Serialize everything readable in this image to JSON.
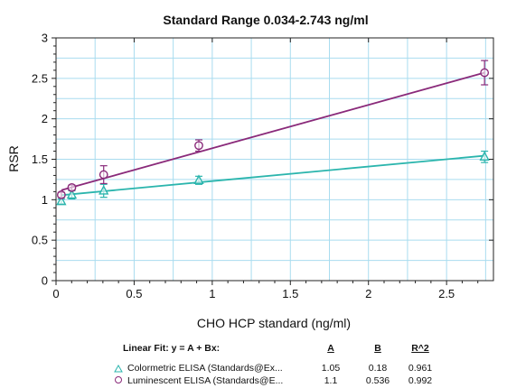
{
  "chart_data": {
    "type": "scatter",
    "title": "Standard Range 0.034-2.743 ng/ml",
    "xlabel": "CHO HCP standard (ng/ml)",
    "ylabel": "RSR",
    "xlim": [
      0,
      2.8
    ],
    "ylim": [
      0,
      3
    ],
    "xticks": [
      0,
      0.5,
      1,
      1.5,
      2,
      2.5
    ],
    "yticks": [
      0,
      0.5,
      1,
      1.5,
      2,
      2.5,
      3
    ],
    "grid": true,
    "series": [
      {
        "name": "Colormetric ELISA (Standards@Ex...",
        "marker": "triangle",
        "color": "#2bb5ad",
        "x": [
          0.034,
          0.101,
          0.305,
          0.914,
          2.743
        ],
        "y": [
          0.98,
          1.06,
          1.11,
          1.24,
          1.53
        ],
        "err": [
          0.03,
          0.05,
          0.08,
          0.05,
          0.07
        ],
        "fit": {
          "A": 1.05,
          "B": 0.18,
          "R2": 0.961
        }
      },
      {
        "name": "Luminescent ELISA (Standards@E...",
        "marker": "circle",
        "color": "#8a2a7a",
        "x": [
          0.034,
          0.101,
          0.305,
          0.914,
          2.743
        ],
        "y": [
          1.06,
          1.15,
          1.31,
          1.67,
          2.57
        ],
        "err": [
          0.03,
          0.03,
          0.11,
          0.07,
          0.15
        ],
        "fit": {
          "A": 1.1,
          "B": 0.536,
          "R2": 0.992
        }
      }
    ]
  },
  "fit_table": {
    "heading": "Linear Fit: y = A + Bx:",
    "col_a": "A",
    "col_b": "B",
    "col_r2": "R^2",
    "rows": [
      {
        "label": "Colormetric ELISA (Standards@Ex...",
        "a": "1.05",
        "b": "0.18",
        "r2": "0.961"
      },
      {
        "label": "Luminescent ELISA (Standards@E...",
        "a": "1.1",
        "b": "0.536",
        "r2": "0.992"
      }
    ]
  },
  "colors": {
    "grid": "#a9dcef",
    "axis": "#222222"
  }
}
